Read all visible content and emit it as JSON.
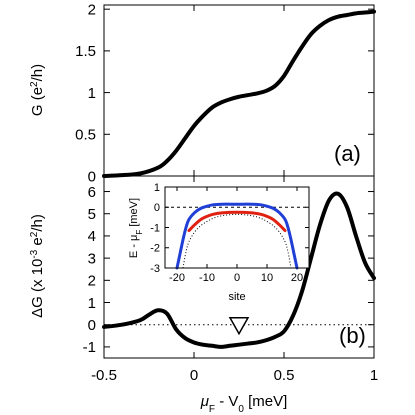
{
  "chart_data": [
    {
      "type": "line",
      "panel_label": "(a)",
      "xlabel": "μF - V0 [meV]",
      "ylabel": "G (e2/h)",
      "xlim": [
        -0.5,
        1.0
      ],
      "ylim": [
        0,
        2.05
      ],
      "x_ticks": [
        "-0.5",
        "0",
        "0.5",
        "1"
      ],
      "y_ticks": [
        "0",
        "0.5",
        "1",
        "1.5",
        "2"
      ],
      "reference_line": {
        "y": 0,
        "style": "dotted"
      },
      "series": [
        {
          "color": "#000000",
          "x": [
            -0.5,
            -0.4,
            -0.3,
            -0.2,
            -0.15,
            -0.1,
            -0.05,
            0.0,
            0.05,
            0.1,
            0.15,
            0.2,
            0.25,
            0.3,
            0.35,
            0.4,
            0.45,
            0.5,
            0.55,
            0.6,
            0.65,
            0.7,
            0.75,
            0.8,
            0.85,
            0.9,
            0.95,
            1.0
          ],
          "y": [
            0.0,
            0.01,
            0.03,
            0.1,
            0.18,
            0.3,
            0.45,
            0.6,
            0.72,
            0.82,
            0.88,
            0.92,
            0.95,
            0.97,
            0.99,
            1.02,
            1.08,
            1.2,
            1.38,
            1.55,
            1.7,
            1.8,
            1.87,
            1.91,
            1.93,
            1.95,
            1.96,
            1.97
          ]
        }
      ]
    },
    {
      "type": "line",
      "panel_label": "(b)",
      "xlabel": "μF - V0 [meV]",
      "ylabel": "ΔG (x 10-3 e2/h)",
      "xlim": [
        -0.5,
        1.0
      ],
      "ylim": [
        -1.5,
        6.7
      ],
      "x_ticks": [
        "-0.5",
        "0",
        "0.5",
        "1"
      ],
      "y_ticks": [
        "-1",
        "0",
        "1",
        "2",
        "3",
        "4",
        "5",
        "6"
      ],
      "reference_line": {
        "y": 0,
        "style": "dotted"
      },
      "marker": {
        "symbol": "open-triangle-down",
        "x": 0.25,
        "y": 0.0
      },
      "series": [
        {
          "color": "#000000",
          "x": [
            -0.5,
            -0.4,
            -0.3,
            -0.25,
            -0.2,
            -0.15,
            -0.1,
            -0.05,
            0.0,
            0.05,
            0.1,
            0.15,
            0.2,
            0.25,
            0.3,
            0.35,
            0.4,
            0.45,
            0.5,
            0.55,
            0.6,
            0.65,
            0.7,
            0.75,
            0.8,
            0.85,
            0.9,
            0.95,
            1.0
          ],
          "y": [
            -0.1,
            0.0,
            0.2,
            0.45,
            0.65,
            0.5,
            -0.2,
            -0.6,
            -0.8,
            -0.9,
            -0.95,
            -1.0,
            -0.95,
            -0.9,
            -0.85,
            -0.8,
            -0.7,
            -0.55,
            -0.3,
            0.4,
            1.5,
            3.0,
            4.5,
            5.6,
            5.9,
            5.3,
            4.0,
            2.8,
            2.1
          ]
        }
      ]
    },
    {
      "type": "line",
      "panel_label": "inset",
      "xlabel": "site",
      "ylabel": "E - μF [meV]",
      "xlim": [
        -24,
        24
      ],
      "ylim": [
        -3,
        1
      ],
      "x_ticks": [
        "-20",
        "-10",
        "0",
        "10",
        "20"
      ],
      "y_ticks": [
        "-3",
        "-2",
        "-1",
        "0",
        "1"
      ],
      "reference_line": {
        "y": 0,
        "style": "dashed"
      },
      "series": [
        {
          "color": "#1f3fd6",
          "x": [
            -20,
            -19,
            -18,
            -17,
            -16,
            -14,
            -12,
            -10,
            -8,
            -5,
            0,
            5,
            8,
            10,
            12,
            14,
            16,
            17,
            18,
            19,
            20
          ],
          "y": [
            -3.0,
            -2.3,
            -1.6,
            -1.0,
            -0.6,
            -0.25,
            -0.05,
            0.05,
            0.12,
            0.15,
            0.15,
            0.15,
            0.12,
            0.05,
            -0.05,
            -0.25,
            -0.6,
            -1.0,
            -1.6,
            -2.3,
            -3.0
          ]
        },
        {
          "color": "#e02010",
          "x": [
            -16,
            -14,
            -12,
            -10,
            -8,
            -5,
            0,
            5,
            8,
            10,
            12,
            14,
            16
          ],
          "y": [
            -1.15,
            -0.85,
            -0.6,
            -0.45,
            -0.35,
            -0.28,
            -0.25,
            -0.28,
            -0.35,
            -0.45,
            -0.6,
            -0.85,
            -1.15
          ]
        },
        {
          "color": "#000000",
          "style": "dotted",
          "x": [
            -18,
            -17,
            -16,
            -14,
            -12,
            -10,
            -8,
            -5,
            0,
            5,
            8,
            10,
            12,
            14,
            16,
            17,
            18
          ],
          "y": [
            -3.0,
            -2.2,
            -1.7,
            -1.2,
            -0.9,
            -0.7,
            -0.55,
            -0.42,
            -0.35,
            -0.42,
            -0.55,
            -0.7,
            -0.9,
            -1.2,
            -1.7,
            -2.2,
            -3.0
          ]
        }
      ]
    }
  ]
}
